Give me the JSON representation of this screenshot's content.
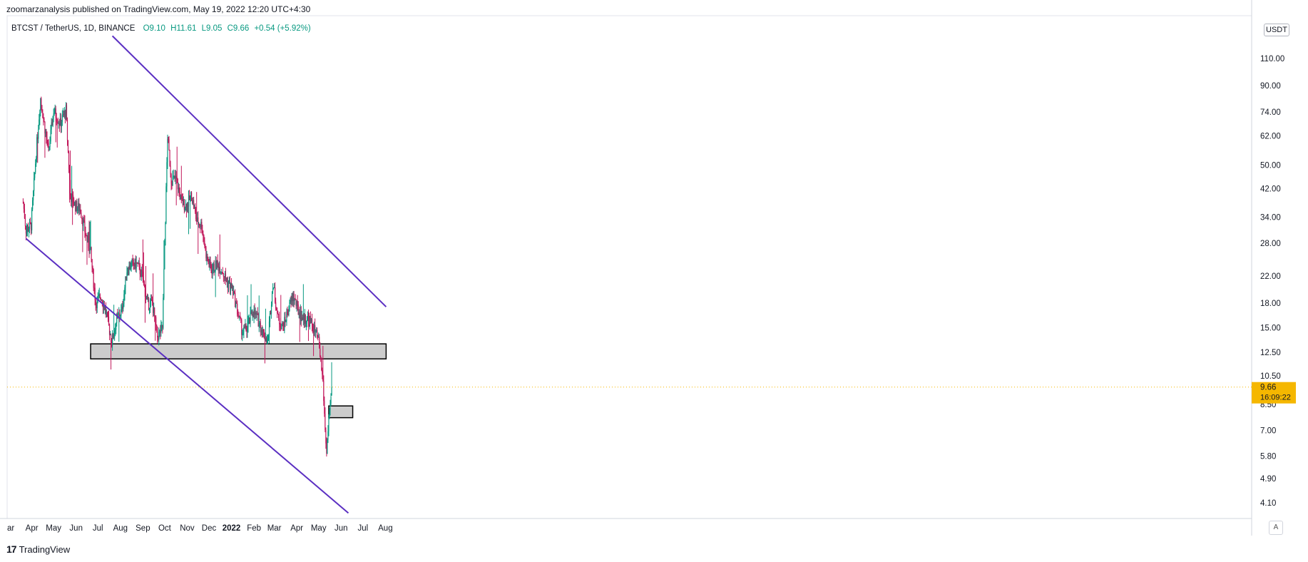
{
  "header": {
    "published": "zoomarzanalysis published on TradingView.com, May 19, 2022 12:20 UTC+4:30"
  },
  "legend": {
    "symbol": "BTCST / TetherUS, 1D, BINANCE",
    "open": "O9.10",
    "high": "H11.61",
    "low": "L9.05",
    "close": "C9.66",
    "change": "+0.54 (+5.92%)"
  },
  "price_axis": {
    "unit_button": "USDT",
    "last_price": "9.66",
    "countdown": "16:09:22",
    "auto_button": "A"
  },
  "brand": {
    "name": "TradingView"
  },
  "colors": {
    "up": "#089981",
    "down": "#c2185b",
    "channel": "#5b2fc2",
    "zone_fill": "#cccccc",
    "last_price_bg": "#f5b700"
  },
  "chart_data": {
    "type": "candlestick",
    "scale": "log",
    "symbol": "BTCST / TetherUS",
    "timeframe": "1D",
    "ylim": [
      3.8,
      130
    ],
    "y_ticks": [
      "110.00",
      "90.00",
      "74.00",
      "62.00",
      "50.00",
      "42.00",
      "34.00",
      "28.00",
      "22.00",
      "18.00",
      "15.00",
      "12.50",
      "10.50",
      "8.50",
      "7.00",
      "5.80",
      "4.90",
      "4.10"
    ],
    "x_ticks": [
      "ar",
      "Apr",
      "May",
      "Jun",
      "Jul",
      "Aug",
      "Sep",
      "Oct",
      "Nov",
      "Dec",
      "2022",
      "Feb",
      "Mar",
      "Apr",
      "May",
      "Jun",
      "Jul",
      "Aug"
    ],
    "price_path": [
      [
        "2021-03-20",
        38
      ],
      [
        "2021-03-24",
        31
      ],
      [
        "2021-03-31",
        32
      ],
      [
        "2021-04-07",
        55
      ],
      [
        "2021-04-13",
        82
      ],
      [
        "2021-04-18",
        68
      ],
      [
        "2021-04-24",
        55
      ],
      [
        "2021-05-01",
        75
      ],
      [
        "2021-05-10",
        68
      ],
      [
        "2021-05-18",
        75
      ],
      [
        "2021-05-24",
        40
      ],
      [
        "2021-05-31",
        37
      ],
      [
        "2021-06-07",
        36
      ],
      [
        "2021-06-14",
        30
      ],
      [
        "2021-06-21",
        26
      ],
      [
        "2021-06-28",
        18
      ],
      [
        "2021-07-05",
        19
      ],
      [
        "2021-07-12",
        17
      ],
      [
        "2021-07-20",
        13.5
      ],
      [
        "2021-07-27",
        16
      ],
      [
        "2021-08-03",
        17
      ],
      [
        "2021-08-10",
        23
      ],
      [
        "2021-08-17",
        24
      ],
      [
        "2021-08-24",
        24
      ],
      [
        "2021-08-31",
        22
      ],
      [
        "2021-09-07",
        18
      ],
      [
        "2021-09-14",
        18
      ],
      [
        "2021-09-21",
        14
      ],
      [
        "2021-09-28",
        15
      ],
      [
        "2021-10-05",
        62
      ],
      [
        "2021-10-10",
        45
      ],
      [
        "2021-10-17",
        45
      ],
      [
        "2021-10-24",
        38
      ],
      [
        "2021-10-31",
        37
      ],
      [
        "2021-11-07",
        40
      ],
      [
        "2021-11-14",
        33
      ],
      [
        "2021-11-21",
        32
      ],
      [
        "2021-11-28",
        25
      ],
      [
        "2021-12-05",
        23
      ],
      [
        "2021-12-12",
        24
      ],
      [
        "2021-12-19",
        23
      ],
      [
        "2021-12-26",
        21
      ],
      [
        "2022-01-02",
        20
      ],
      [
        "2022-01-09",
        17
      ],
      [
        "2022-01-16",
        14.5
      ],
      [
        "2022-01-23",
        15
      ],
      [
        "2022-01-30",
        17
      ],
      [
        "2022-02-06",
        16
      ],
      [
        "2022-02-13",
        14.5
      ],
      [
        "2022-02-20",
        13.5
      ],
      [
        "2022-02-27",
        21
      ],
      [
        "2022-03-06",
        16
      ],
      [
        "2022-03-13",
        15
      ],
      [
        "2022-03-20",
        17
      ],
      [
        "2022-03-27",
        19
      ],
      [
        "2022-04-03",
        17
      ],
      [
        "2022-04-10",
        16
      ],
      [
        "2022-04-17",
        16
      ],
      [
        "2022-04-24",
        15
      ],
      [
        "2022-05-01",
        13.5
      ],
      [
        "2022-05-07",
        10
      ],
      [
        "2022-05-10",
        7
      ],
      [
        "2022-05-12",
        6
      ],
      [
        "2022-05-15",
        7.5
      ],
      [
        "2022-05-17",
        8.2
      ],
      [
        "2022-05-19",
        9.66
      ]
    ],
    "last_candle": {
      "date": "2022-05-19",
      "open": 9.1,
      "high": 11.61,
      "low": 9.05,
      "close": 9.66
    },
    "channel_upper": [
      [
        "2021-07-21",
        130
      ],
      [
        "2022-08-02",
        17.5
      ]
    ],
    "channel_lower": [
      [
        "2021-03-24",
        29
      ],
      [
        "2022-06-11",
        3.8
      ]
    ],
    "zones": [
      {
        "from": "2021-06-21",
        "to": "2022-08-02",
        "high": 13.3,
        "low": 11.9
      },
      {
        "from": "2022-05-15",
        "to": "2022-06-17",
        "high": 8.4,
        "low": 7.7
      }
    ],
    "last_price": 9.66
  }
}
